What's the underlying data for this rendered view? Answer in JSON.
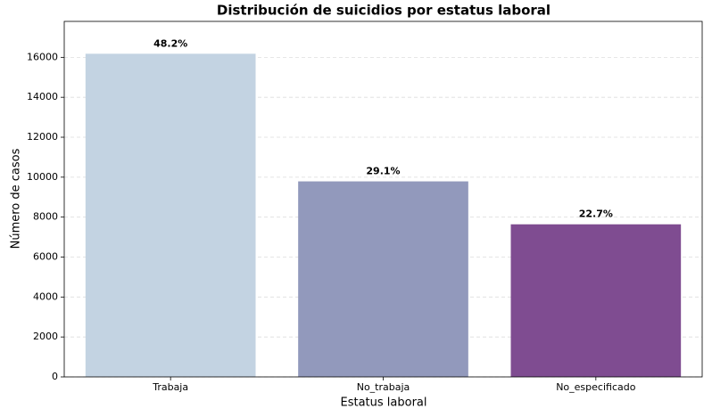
{
  "chart_data": {
    "type": "bar",
    "title": "Distribución de suicidios por estatus laboral",
    "xlabel": "Estatus laboral",
    "ylabel": "Número de casos",
    "categories": [
      "Trabaja",
      "No_trabaja",
      "No_especificado"
    ],
    "values": [
      16180,
      9790,
      7640
    ],
    "percent_labels": [
      "48.2%",
      "29.1%",
      "22.7%"
    ],
    "colors": [
      "#c3d3e2",
      "#9299bc",
      "#7f4c91"
    ],
    "ylim": [
      0,
      17800
    ],
    "yticks": [
      0,
      2000,
      4000,
      6000,
      8000,
      10000,
      12000,
      14000,
      16000
    ],
    "grid": true
  }
}
